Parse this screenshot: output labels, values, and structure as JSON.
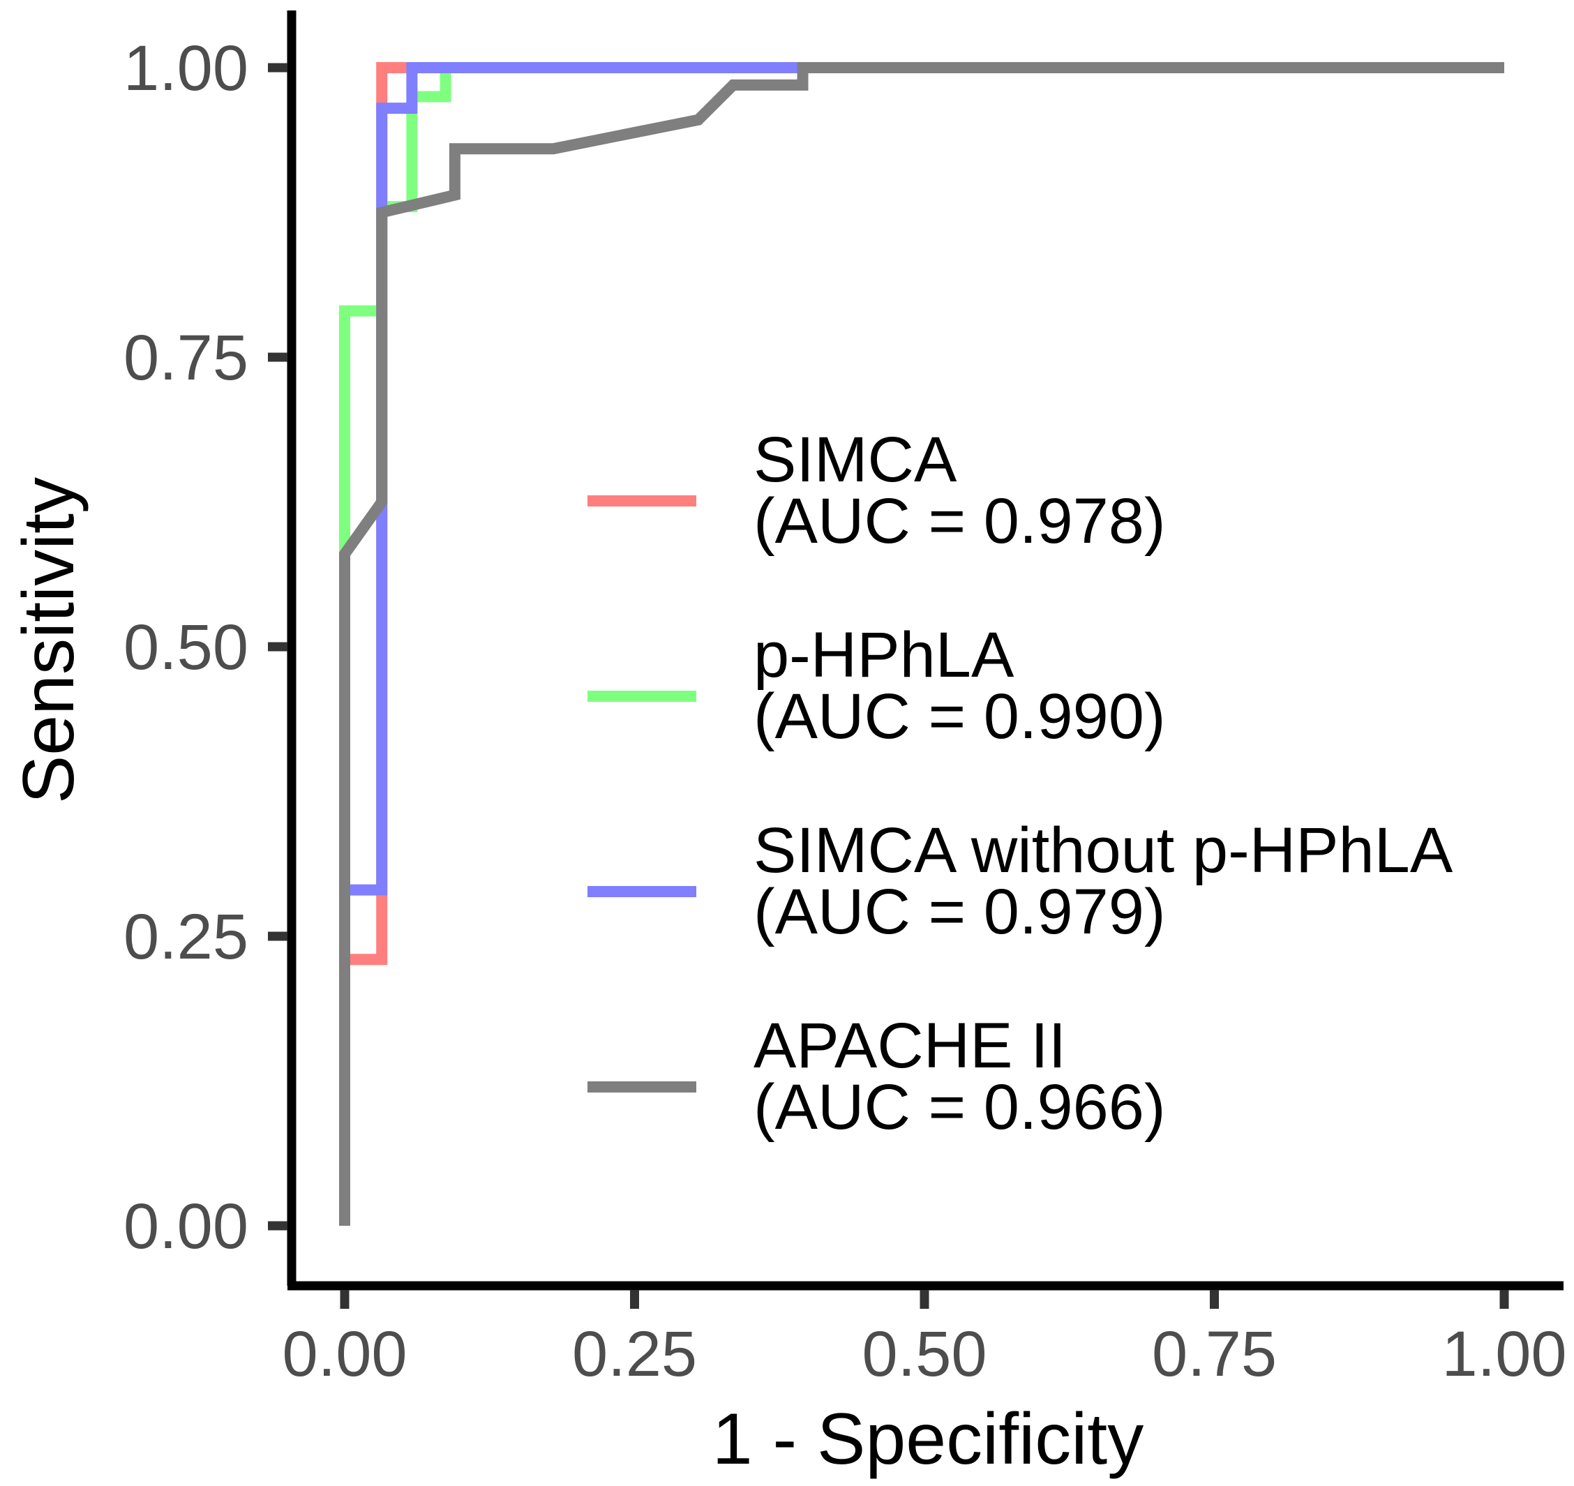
{
  "chart_data": {
    "type": "line",
    "title": "",
    "xlabel": "1 - Specificity",
    "ylabel": "Sensitivity",
    "xlim": [
      0,
      1
    ],
    "ylim": [
      0,
      1
    ],
    "x_ticks": [
      0,
      0.25,
      0.5,
      0.75,
      1
    ],
    "y_ticks": [
      0,
      0.25,
      0.5,
      0.75,
      1
    ],
    "x_tick_labels": [
      "0.00",
      "0.25",
      "0.50",
      "0.75",
      "1.00"
    ],
    "y_tick_labels": [
      "0.00",
      "0.25",
      "0.50",
      "0.75",
      "1.00"
    ],
    "grid": false,
    "legend_position": "right",
    "series": [
      {
        "name": "SIMCA",
        "auc_label": "(AUC = 0.978)",
        "color": "#ff7f7f",
        "points": [
          [
            0,
            0
          ],
          [
            0,
            0.23
          ],
          [
            0.032,
            0.23
          ],
          [
            0.032,
            1.0
          ],
          [
            1.0,
            1.0
          ]
        ]
      },
      {
        "name": "p-HPhLA",
        "auc_label": "(AUC = 0.990)",
        "color": "#7fff7f",
        "points": [
          [
            0,
            0
          ],
          [
            0,
            0.79
          ],
          [
            0.032,
            0.79
          ],
          [
            0.032,
            0.88
          ],
          [
            0.058,
            0.88
          ],
          [
            0.058,
            0.975
          ],
          [
            0.087,
            0.975
          ],
          [
            0.087,
            1.0
          ],
          [
            1.0,
            1.0
          ]
        ]
      },
      {
        "name": "SIMCA without p-HPhLA",
        "auc_label": "(AUC = 0.979)",
        "color": "#7f7fff",
        "points": [
          [
            0,
            0
          ],
          [
            0,
            0.29
          ],
          [
            0.032,
            0.29
          ],
          [
            0.032,
            0.965
          ],
          [
            0.058,
            0.965
          ],
          [
            0.058,
            1.0
          ],
          [
            1.0,
            1.0
          ]
        ]
      },
      {
        "name": "APACHE II",
        "auc_label": "(AUC = 0.966)",
        "color": "#7f7f7f",
        "points": [
          [
            0,
            0
          ],
          [
            0,
            0.58
          ],
          [
            0.032,
            0.625
          ],
          [
            0.032,
            0.875
          ],
          [
            0.095,
            0.89
          ],
          [
            0.095,
            0.93
          ],
          [
            0.18,
            0.93
          ],
          [
            0.305,
            0.955
          ],
          [
            0.335,
            0.985
          ],
          [
            0.395,
            0.985
          ],
          [
            0.395,
            1.0
          ],
          [
            1.0,
            1.0
          ]
        ]
      }
    ]
  }
}
